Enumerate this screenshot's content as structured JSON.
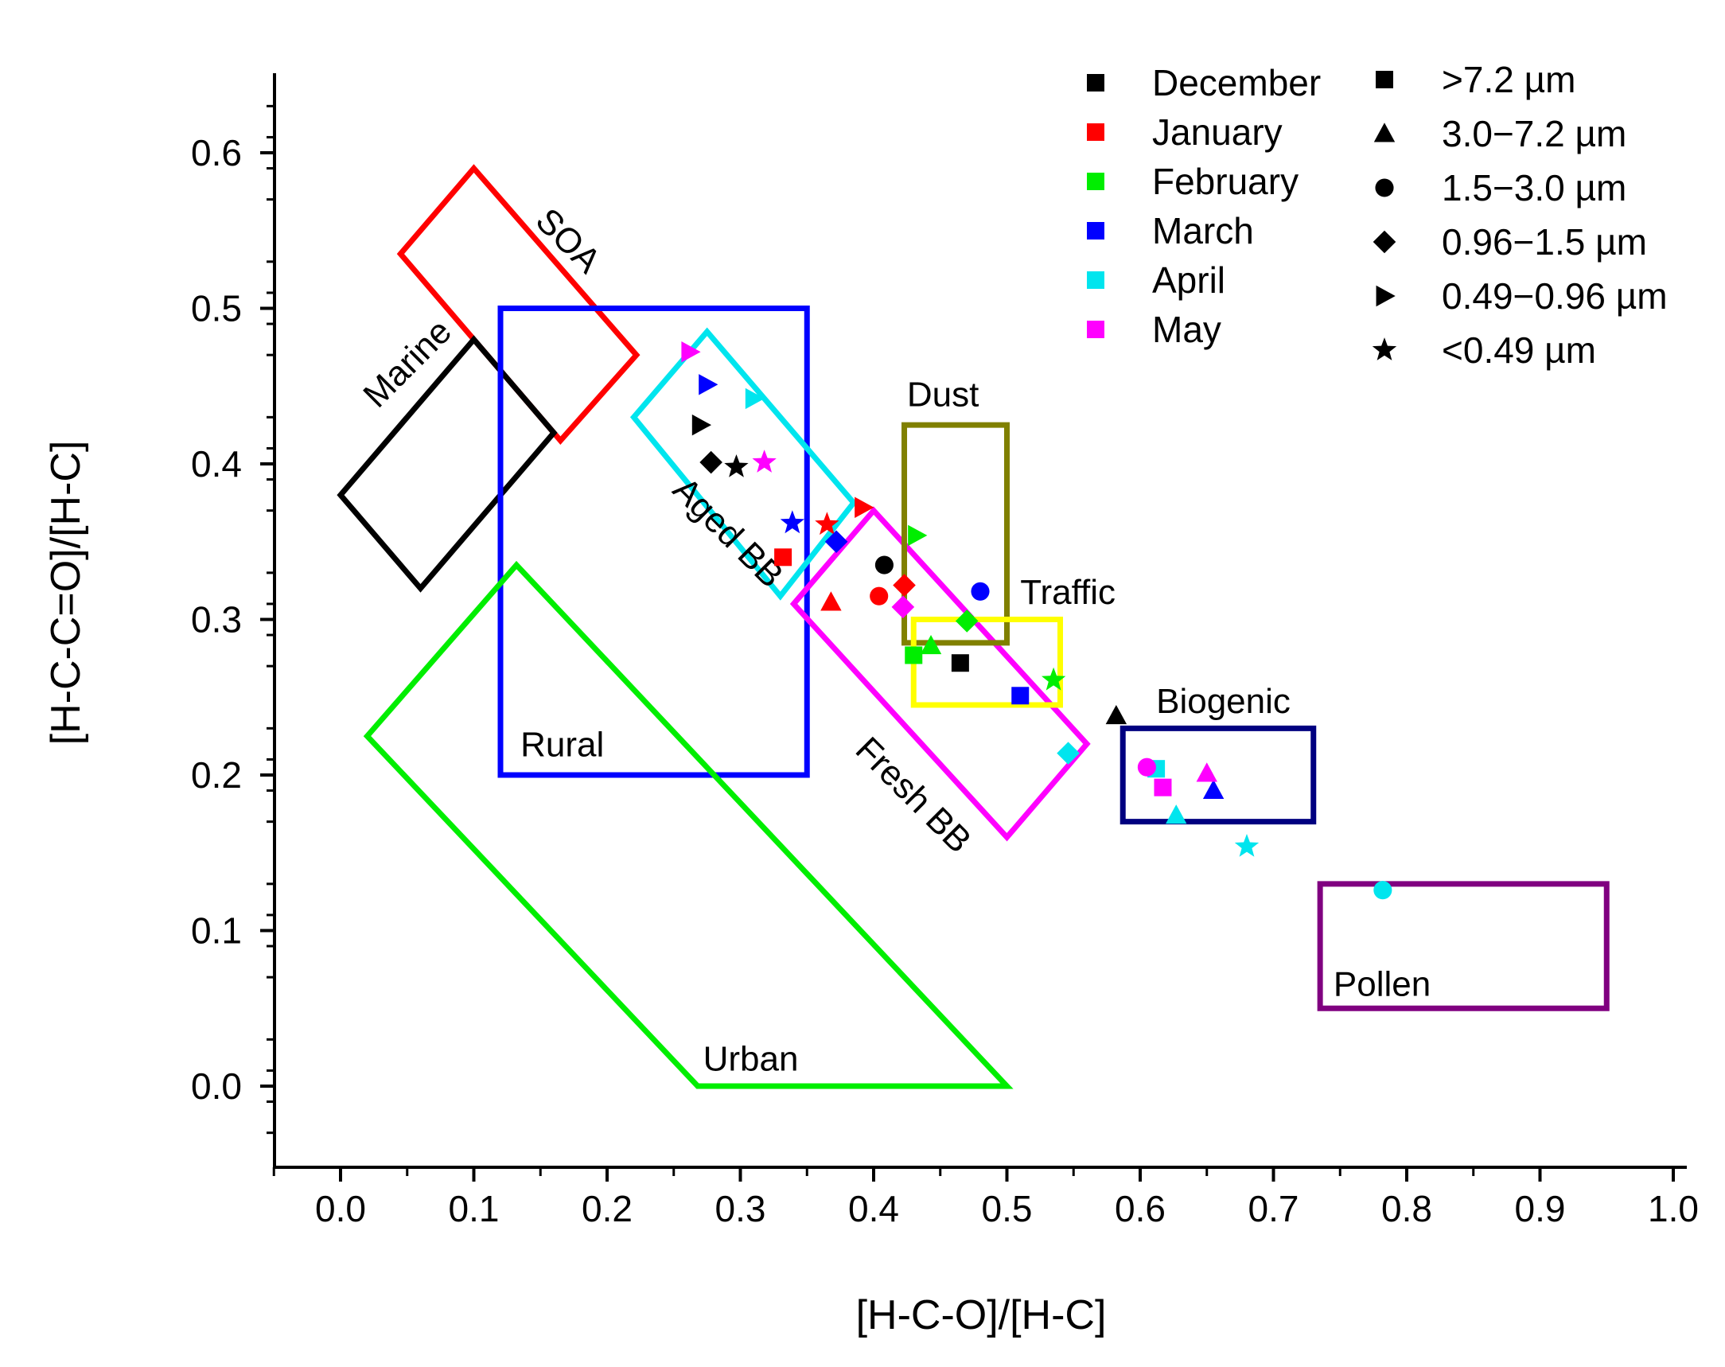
{
  "chart_data": {
    "type": "scatter",
    "xlabel": "[H-C-O]/[H-C]",
    "ylabel": "[H-C-C=O]/[H-C]",
    "xlim": [
      -0.05,
      1.0
    ],
    "ylim": [
      -0.05,
      0.65
    ],
    "x_ticks": [
      "0.0",
      "0.1",
      "0.2",
      "0.3",
      "0.4",
      "0.5",
      "0.6",
      "0.7",
      "0.8",
      "0.9",
      "1.0"
    ],
    "y_ticks": [
      "0.0",
      "0.1",
      "0.2",
      "0.3",
      "0.4",
      "0.5",
      "0.6"
    ],
    "regions": [
      {
        "name": "SOA",
        "label": "SOA",
        "color": "#ff0000",
        "points": [
          [
            0.045,
            0.535
          ],
          [
            0.1,
            0.59
          ],
          [
            0.222,
            0.47
          ],
          [
            0.165,
            0.415
          ]
        ],
        "label_at": [
          0.145,
          0.555
        ],
        "label_rotate": 45
      },
      {
        "name": "Marine",
        "label": "Marine",
        "color": "#000000",
        "points": [
          [
            0.0,
            0.38
          ],
          [
            0.1,
            0.48
          ],
          [
            0.16,
            0.42
          ],
          [
            0.06,
            0.32
          ]
        ],
        "label_at": [
          0.028,
          0.435
        ],
        "label_rotate": -45
      },
      {
        "name": "Rural",
        "label": "Rural",
        "color": "#0000ff",
        "points": [
          [
            0.12,
            0.5
          ],
          [
            0.35,
            0.5
          ],
          [
            0.35,
            0.2
          ],
          [
            0.12,
            0.2
          ]
        ],
        "label_at": [
          0.135,
          0.212
        ],
        "label_rotate": 0
      },
      {
        "name": "Aged BB",
        "label": "Aged BB",
        "color": "#00e5ee",
        "points": [
          [
            0.22,
            0.43
          ],
          [
            0.275,
            0.485
          ],
          [
            0.385,
            0.375
          ],
          [
            0.33,
            0.315
          ]
        ],
        "label_at": [
          0.248,
          0.382
        ],
        "label_rotate": 45
      },
      {
        "name": "Fresh BB",
        "label": "Fresh BB",
        "color": "#ff00ff",
        "points": [
          [
            0.34,
            0.31
          ],
          [
            0.4,
            0.37
          ],
          [
            0.56,
            0.22
          ],
          [
            0.5,
            0.16
          ]
        ],
        "label_at": [
          0.385,
          0.215
        ],
        "label_rotate": 45
      },
      {
        "name": "Dust",
        "label": "Dust",
        "color": "#808000",
        "points": [
          [
            0.423,
            0.285
          ],
          [
            0.5,
            0.285
          ],
          [
            0.5,
            0.425
          ],
          [
            0.423,
            0.425
          ]
        ],
        "label_at": [
          0.425,
          0.437
        ],
        "label_rotate": 0
      },
      {
        "name": "Traffic",
        "label": "Traffic",
        "color": "#ffff00",
        "points": [
          [
            0.43,
            0.245
          ],
          [
            0.54,
            0.245
          ],
          [
            0.54,
            0.3
          ],
          [
            0.43,
            0.3
          ]
        ],
        "label_at": [
          0.51,
          0.31
        ],
        "label_rotate": 0
      },
      {
        "name": "Urban",
        "label": "Urban",
        "color": "#00ee00",
        "points": [
          [
            0.02,
            0.225
          ],
          [
            0.132,
            0.335
          ],
          [
            0.5,
            0.0
          ],
          [
            0.268,
            0.0
          ]
        ],
        "label_at": [
          0.272,
          0.01
        ],
        "label_rotate": 0
      },
      {
        "name": "Biogenic",
        "label": "Biogenic",
        "color": "#000080",
        "points": [
          [
            0.587,
            0.17
          ],
          [
            0.73,
            0.17
          ],
          [
            0.73,
            0.23
          ],
          [
            0.587,
            0.23
          ]
        ],
        "label_at": [
          0.612,
          0.24
        ],
        "label_rotate": 0
      },
      {
        "name": "Pollen",
        "label": "Pollen",
        "color": "#800080",
        "points": [
          [
            0.735,
            0.05
          ],
          [
            0.95,
            0.05
          ],
          [
            0.95,
            0.13
          ],
          [
            0.735,
            0.13
          ]
        ],
        "label_at": [
          0.745,
          0.058
        ],
        "label_rotate": 0
      }
    ],
    "series": [
      {
        "name": "December",
        "color": "#000000",
        "points": [
          {
            "x": 0.465,
            "y": 0.272,
            "size": ">7.2 µm"
          },
          {
            "x": 0.582,
            "y": 0.238,
            "size": "3.0−7.2 µm"
          },
          {
            "x": 0.408,
            "y": 0.335,
            "size": "1.5−3.0 µm"
          },
          {
            "x": 0.278,
            "y": 0.401,
            "size": "0.96−1.5 µm"
          },
          {
            "x": 0.27,
            "y": 0.425,
            "size": "0.49−0.96 µm"
          },
          {
            "x": 0.297,
            "y": 0.398,
            "size": "<0.49 µm"
          }
        ]
      },
      {
        "name": "January",
        "color": "#ff0000",
        "points": [
          {
            "x": 0.332,
            "y": 0.34,
            "size": ">7.2 µm"
          },
          {
            "x": 0.368,
            "y": 0.311,
            "size": "3.0−7.2 µm"
          },
          {
            "x": 0.404,
            "y": 0.315,
            "size": "1.5−3.0 µm"
          },
          {
            "x": 0.423,
            "y": 0.322,
            "size": "0.96−1.5 µm"
          },
          {
            "x": 0.392,
            "y": 0.372,
            "size": "0.49−0.96 µm"
          },
          {
            "x": 0.365,
            "y": 0.361,
            "size": "<0.49 µm"
          }
        ]
      },
      {
        "name": "February",
        "color": "#00ee00",
        "points": [
          {
            "x": 0.43,
            "y": 0.277,
            "size": ">7.2 µm"
          },
          {
            "x": 0.443,
            "y": 0.283,
            "size": "3.0−7.2 µm"
          },
          {
            "x": 0.47,
            "y": 0.299,
            "size": "0.96−1.5 µm"
          },
          {
            "x": 0.432,
            "y": 0.354,
            "size": "0.49−0.96 µm"
          },
          {
            "x": 0.535,
            "y": 0.261,
            "size": "<0.49 µm"
          }
        ]
      },
      {
        "name": "March",
        "color": "#0000ff",
        "points": [
          {
            "x": 0.51,
            "y": 0.251,
            "size": ">7.2 µm"
          },
          {
            "x": 0.655,
            "y": 0.19,
            "size": "3.0−7.2 µm"
          },
          {
            "x": 0.48,
            "y": 0.318,
            "size": "1.5−3.0 µm"
          },
          {
            "x": 0.372,
            "y": 0.35,
            "size": "0.96−1.5 µm"
          },
          {
            "x": 0.275,
            "y": 0.451,
            "size": "0.49−0.96 µm"
          },
          {
            "x": 0.339,
            "y": 0.362,
            "size": "<0.49 µm"
          }
        ]
      },
      {
        "name": "April",
        "color": "#00e5ee",
        "points": [
          {
            "x": 0.612,
            "y": 0.204,
            "size": ">7.2 µm"
          },
          {
            "x": 0.627,
            "y": 0.174,
            "size": "3.0−7.2 µm"
          },
          {
            "x": 0.782,
            "y": 0.126,
            "size": "1.5−3.0 µm"
          },
          {
            "x": 0.546,
            "y": 0.214,
            "size": "0.96−1.5 µm"
          },
          {
            "x": 0.31,
            "y": 0.442,
            "size": "0.49−0.96 µm"
          },
          {
            "x": 0.68,
            "y": 0.154,
            "size": "<0.49 µm"
          }
        ]
      },
      {
        "name": "May",
        "color": "#ff00ff",
        "points": [
          {
            "x": 0.617,
            "y": 0.192,
            "size": ">7.2 µm"
          },
          {
            "x": 0.65,
            "y": 0.201,
            "size": "3.0−7.2 µm"
          },
          {
            "x": 0.605,
            "y": 0.205,
            "size": "1.5−3.0 µm"
          },
          {
            "x": 0.422,
            "y": 0.308,
            "size": "0.96−1.5 µm"
          },
          {
            "x": 0.262,
            "y": 0.472,
            "size": "0.49−0.96 µm"
          },
          {
            "x": 0.318,
            "y": 0.401,
            "size": "<0.49 µm"
          }
        ]
      }
    ],
    "legend_months": [
      {
        "label": "December",
        "color": "#000000"
      },
      {
        "label": "January",
        "color": "#ff0000"
      },
      {
        "label": "February",
        "color": "#00ee00"
      },
      {
        "label": "March",
        "color": "#0000ff"
      },
      {
        "label": "April",
        "color": "#00e5ee"
      },
      {
        "label": "May",
        "color": "#ff00ff"
      }
    ],
    "legend_sizes": [
      {
        "label": ">7.2 µm",
        "marker": "square"
      },
      {
        "label": "3.0−7.2 µm",
        "marker": "triangle"
      },
      {
        "label": "1.5−3.0 µm",
        "marker": "circle"
      },
      {
        "label": "0.96−1.5 µm",
        "marker": "diamond"
      },
      {
        "label": "0.49−0.96 µm",
        "marker": "right-triangle"
      },
      {
        "label": "<0.49 µm",
        "marker": "star"
      }
    ],
    "legend_position": "top-right",
    "grid": false
  }
}
